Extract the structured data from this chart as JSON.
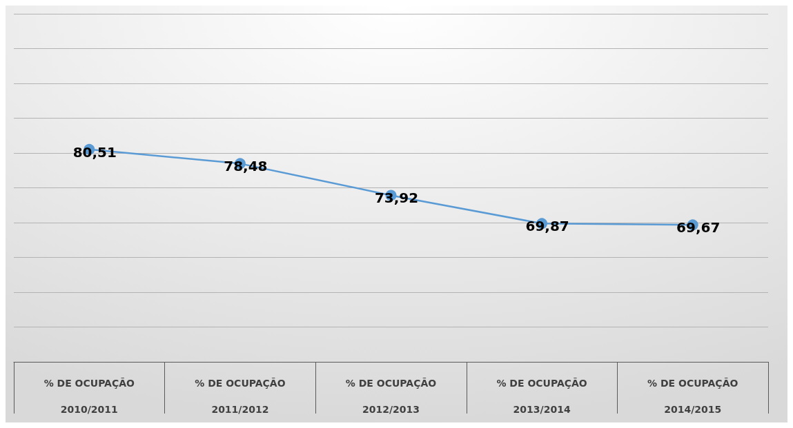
{
  "chart_data": {
    "type": "line",
    "categories": [
      "% DE OCUPAÇÃO\n2010/2011",
      "% DE OCUPAÇÃO\n2011/2012",
      "% DE OCUPAÇÃO\n2012/2013",
      "% DE OCUPAÇÃO\n2013/2014",
      "% DE OCUPAÇÃO\n2014/2015"
    ],
    "series": [
      {
        "color": "#5b9bd5",
        "values": [
          80.51,
          78.48,
          73.92,
          69.87,
          69.67
        ],
        "value_labels": [
          "80,51",
          "78,48",
          "73,92",
          "69,87",
          "69,67"
        ]
      }
    ],
    "ylim": [
      50,
      100
    ],
    "yticks": [
      {
        "value": 50,
        "label": null
      },
      {
        "value": 55,
        "label": null
      },
      {
        "value": 60,
        "label": null
      },
      {
        "value": 65,
        "label": null
      },
      {
        "value": 70,
        "label": null
      },
      {
        "value": 75,
        "label": null
      },
      {
        "value": 80,
        "label": null
      },
      {
        "value": 85,
        "label": null
      },
      {
        "value": 90,
        "label": null
      },
      {
        "value": 95,
        "label": null
      },
      {
        "value": 100,
        "label": null
      }
    ],
    "tick_labels": "x",
    "grid": "y",
    "marker": "circle",
    "line_style": "solid"
  }
}
